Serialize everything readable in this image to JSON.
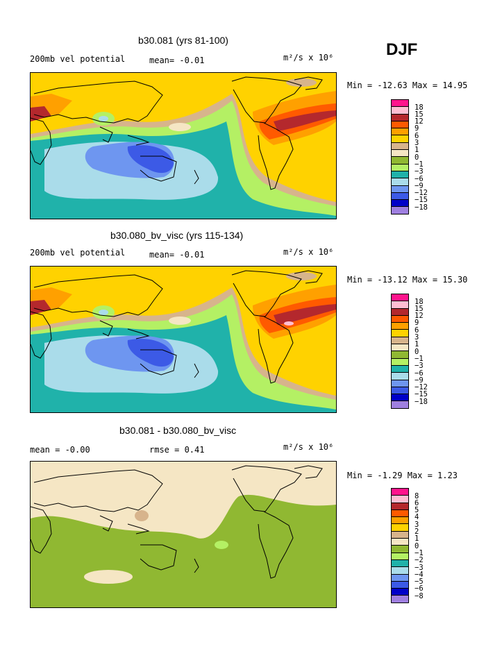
{
  "season": "DJF",
  "colors": {
    "m18": "#9f7fe0",
    "m15": "#0000c8",
    "m12": "#3c5ae6",
    "m9": "#6e96f0",
    "m6": "#aadcea",
    "m3": "#20b2aa",
    "m1": "#b4f064",
    "z0": "#90b832",
    "p1": "#f5e6c4",
    "p3": "#d7b48c",
    "p6": "#ffd200",
    "p9": "#ffa000",
    "p12": "#ff5a00",
    "p15": "#b4282d",
    "p18": "#ffbed2",
    "p21": "#ff148c"
  },
  "panels": [
    {
      "title": "b30.081 (yrs 81-100)",
      "left_label": "200mb vel potential",
      "mid_label": "mean=  -0.01",
      "units": "m²/s x 10⁶",
      "minmax": "Min = -12.63 Max =  14.95",
      "levels": [
        "18",
        "15",
        "12",
        "9",
        "6",
        "3",
        "1",
        "0",
        "−1",
        "−3",
        "−6",
        "−9",
        "−12",
        "−15",
        "−18"
      ]
    },
    {
      "title": "b30.080_bv_visc (yrs 115-134)",
      "left_label": "200mb vel potential",
      "mid_label": "mean=  -0.01",
      "units": "m²/s x 10⁶",
      "minmax": "Min = -13.12 Max =  15.30",
      "levels": [
        "18",
        "15",
        "12",
        "9",
        "6",
        "3",
        "1",
        "0",
        "−1",
        "−3",
        "−6",
        "−9",
        "−12",
        "−15",
        "−18"
      ]
    },
    {
      "title": "b30.081 - b30.080_bv_visc",
      "left_label": "mean =  -0.00",
      "mid_label": "rmse =    0.41",
      "units": "m²/s x 10⁶",
      "minmax": "Min =  -1.29 Max =   1.23",
      "levels": [
        "8",
        "6",
        "5",
        "4",
        "3",
        "2",
        "1",
        "0",
        "−1",
        "−2",
        "−3",
        "−4",
        "−5",
        "−6",
        "−8"
      ]
    }
  ]
}
